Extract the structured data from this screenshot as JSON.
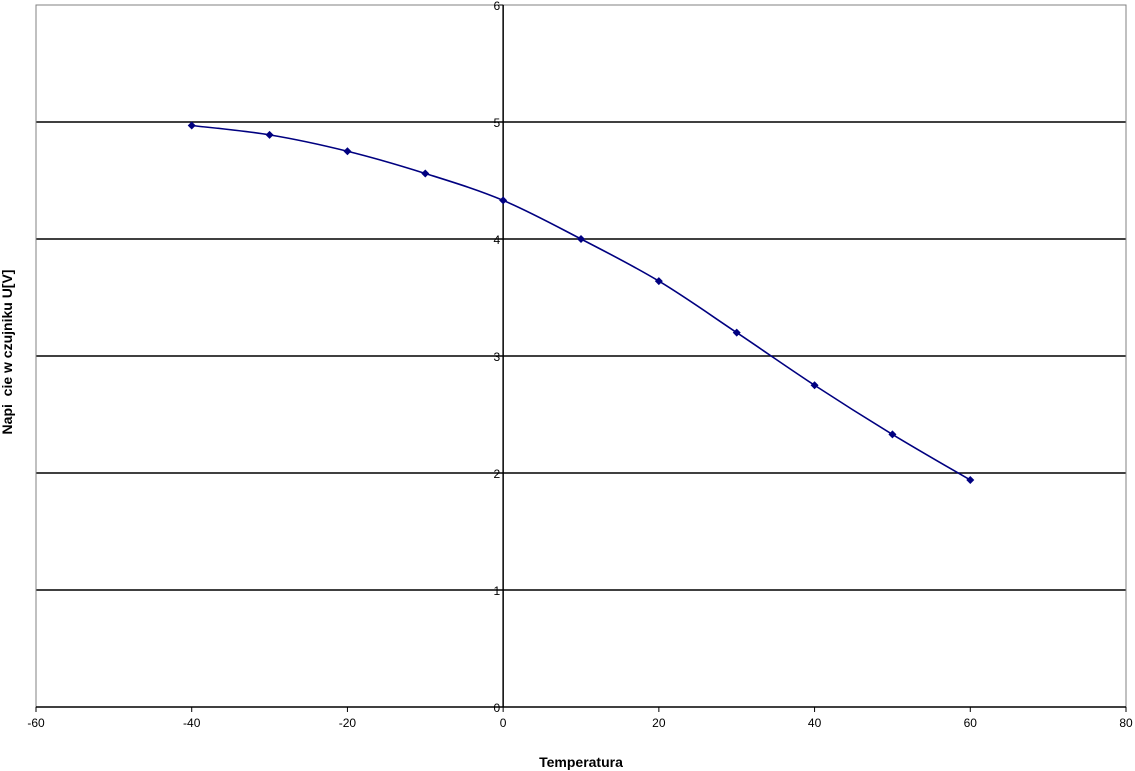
{
  "chart_data": {
    "type": "line",
    "title": "",
    "xlabel": "Temperatura",
    "ylabel": "Napi  cie w czujniku U[V]",
    "xlim": [
      -60,
      80
    ],
    "ylim": [
      0,
      6
    ],
    "xticks": [
      -60,
      -40,
      -20,
      0,
      20,
      40,
      60,
      80
    ],
    "yticks": [
      0,
      1,
      2,
      3,
      4,
      5,
      6
    ],
    "grid": "horizontal",
    "legend": "none",
    "smooth": true,
    "marker": "diamond",
    "colors": {
      "series": "#000080",
      "grid": "#000000",
      "border": "#808080"
    },
    "series": [
      {
        "x": [
          -40,
          -30,
          -20,
          -10,
          0,
          10,
          20,
          30,
          40,
          50,
          60
        ],
        "y": [
          4.97,
          4.89,
          4.75,
          4.56,
          4.33,
          4.0,
          3.64,
          3.2,
          2.75,
          2.33,
          1.94
        ]
      }
    ]
  }
}
